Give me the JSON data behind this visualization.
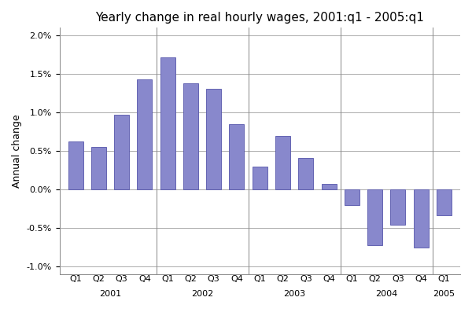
{
  "title": "Yearly change in real hourly wages, 2001:q1 - 2005:q1",
  "ylabel": "Annual change",
  "values": [
    0.0062,
    0.0055,
    0.0097,
    0.0143,
    0.0172,
    0.0138,
    0.0131,
    0.0085,
    0.003,
    0.007,
    0.0041,
    0.0007,
    -0.002,
    -0.0072,
    -0.0046,
    -0.0075,
    -0.0034
  ],
  "bar_color": "#8888cc",
  "bar_edge_color": "#5555aa",
  "background_color": "#ffffff",
  "grid_color": "#888888",
  "title_fontsize": 11,
  "axis_label_fontsize": 9,
  "tick_fontsize": 8,
  "year_info": [
    [
      "2001",
      1,
      4
    ],
    [
      "2002",
      5,
      8
    ],
    [
      "2003",
      9,
      12
    ],
    [
      "2004",
      13,
      16
    ],
    [
      "2005",
      17,
      17
    ]
  ],
  "separators": [
    4.5,
    8.5,
    12.5,
    16.5
  ],
  "yticks": [
    -0.01,
    -0.005,
    0.0,
    0.005,
    0.01,
    0.015,
    0.02
  ],
  "ylim": [
    -0.011,
    0.021
  ]
}
